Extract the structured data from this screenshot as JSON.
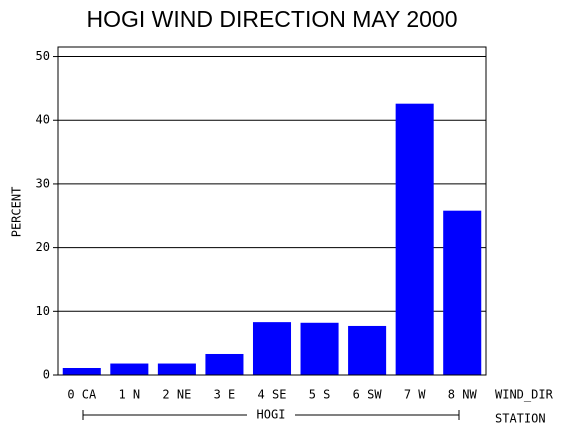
{
  "chart_data": {
    "type": "bar",
    "title": "HOGI WIND DIRECTION MAY 2000",
    "y_label": "PERCENT",
    "x_label": "WIND_DIR",
    "group_axis_label": "STATION",
    "group": "HOGI",
    "categories": [
      "0 CA",
      "1 N",
      "2 NE",
      "3 E",
      "4 SE",
      "5 S",
      "6 SW",
      "7 W",
      "8 NW"
    ],
    "values": [
      1.1,
      1.8,
      1.8,
      3.3,
      8.3,
      8.2,
      7.7,
      42.6,
      25.8
    ],
    "color": "#0000ff",
    "ylim": [
      0,
      51.5
    ],
    "yticks": [
      0,
      10,
      20,
      30,
      40,
      50
    ],
    "grid": true
  }
}
